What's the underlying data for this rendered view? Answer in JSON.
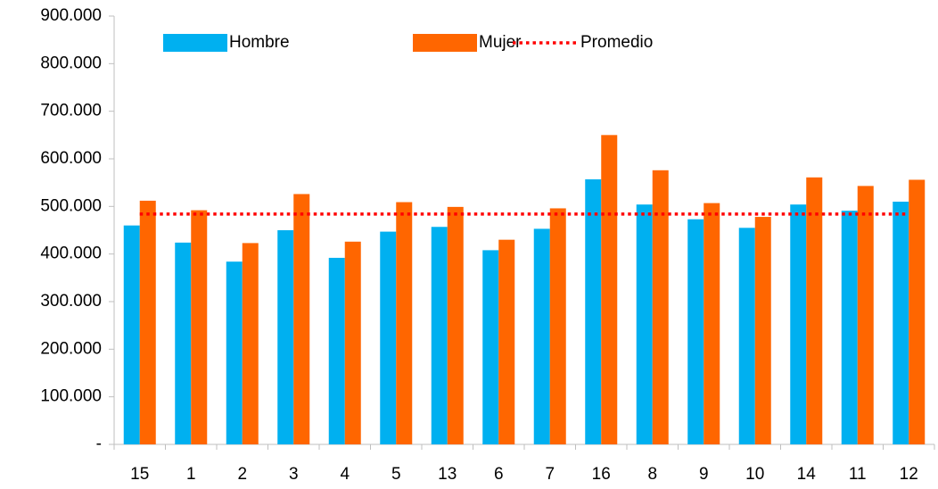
{
  "chart_data": {
    "type": "bar",
    "categories": [
      "15",
      "1",
      "2",
      "3",
      "4",
      "5",
      "13",
      "6",
      "7",
      "16",
      "8",
      "9",
      "10",
      "14",
      "11",
      "12"
    ],
    "series": [
      {
        "name": "Hombre",
        "color": "#00b0f0",
        "values": [
          460000,
          424000,
          384000,
          450000,
          392000,
          447000,
          457000,
          408000,
          453000,
          557000,
          504000,
          473000,
          455000,
          504000,
          491000,
          510000
        ]
      },
      {
        "name": "Mujer",
        "color": "#ff6600",
        "values": [
          512000,
          492000,
          423000,
          526000,
          426000,
          509000,
          499000,
          430000,
          496000,
          650000,
          576000,
          507000,
          478000,
          561000,
          543000,
          556000
        ]
      }
    ],
    "average": {
      "name": "Promedio",
      "color": "#ff0000",
      "value": 484000
    },
    "ylim": [
      0,
      900000
    ],
    "yticks": [
      {
        "value": 0,
        "label": "-"
      },
      {
        "value": 100000,
        "label": "100.000"
      },
      {
        "value": 200000,
        "label": "200.000"
      },
      {
        "value": 300000,
        "label": "300.000"
      },
      {
        "value": 400000,
        "label": "400.000"
      },
      {
        "value": 500000,
        "label": "500.000"
      },
      {
        "value": 600000,
        "label": "600.000"
      },
      {
        "value": 700000,
        "label": "700.000"
      },
      {
        "value": 800000,
        "label": "800.000"
      },
      {
        "value": 900000,
        "label": "900.000"
      }
    ],
    "grid": false,
    "legend": "top"
  }
}
